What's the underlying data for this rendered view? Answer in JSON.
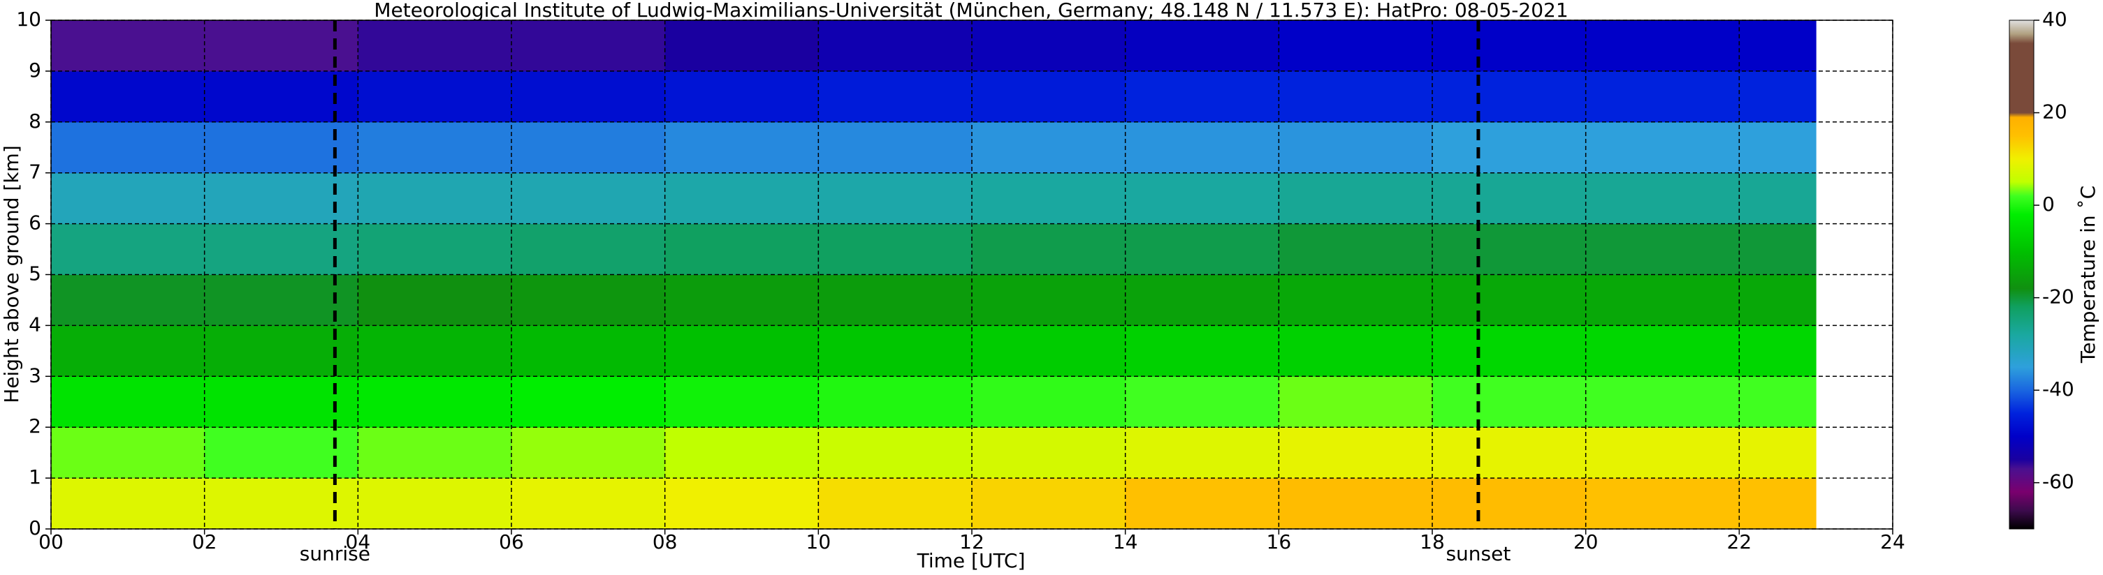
{
  "chart_data": {
    "type": "heatmap",
    "title": "Meteorological Institute of Ludwig-Maximilians-Universität (München, Germany; 48.148 N / 11.573 E):    HatPro: 08-05-2021",
    "xlabel": "Time [UTC]",
    "ylabel": "Height above ground [km]",
    "colorbar_label": "Temperature in ˚C",
    "x": [
      0,
      2,
      4,
      6,
      8,
      10,
      12,
      14,
      16,
      18,
      20,
      22,
      23
    ],
    "y": [
      0,
      1,
      2,
      3,
      4,
      5,
      6,
      7,
      8,
      9,
      10
    ],
    "z": [
      [
        8,
        8,
        8,
        9,
        10,
        12,
        13,
        15,
        16,
        16,
        15,
        15
      ],
      [
        3,
        2,
        3,
        4,
        5,
        6,
        7,
        8,
        9,
        9,
        9,
        9
      ],
      [
        -4,
        -4,
        -3,
        -2,
        -1,
        0,
        1,
        2,
        3,
        2,
        2,
        2
      ],
      [
        -13,
        -13,
        -12,
        -11,
        -10,
        -9,
        -8,
        -7,
        -7,
        -6,
        -6,
        -6
      ],
      [
        -19,
        -19,
        -18,
        -17,
        -16,
        -16,
        -15,
        -15,
        -14,
        -14,
        -14,
        -14
      ],
      [
        -25,
        -25,
        -24,
        -23,
        -22,
        -22,
        -21,
        -21,
        -20,
        -20,
        -20,
        -20
      ],
      [
        -31,
        -31,
        -30,
        -30,
        -29,
        -29,
        -28,
        -28,
        -27,
        -27,
        -27,
        -27
      ],
      [
        -39,
        -39,
        -38,
        -38,
        -37,
        -37,
        -36,
        -36,
        -36,
        -35,
        -35,
        -35
      ],
      [
        -49,
        -49,
        -48,
        -48,
        -47,
        -46,
        -46,
        -45,
        -45,
        -45,
        -45,
        -45
      ],
      [
        -57,
        -57,
        -56,
        -56,
        -55,
        -53,
        -52,
        -51,
        -50,
        -50,
        -50,
        -50
      ]
    ],
    "xlim": [
      0,
      24
    ],
    "ylim": [
      0,
      10
    ],
    "xticks": [
      {
        "value": 0,
        "label": "00"
      },
      {
        "value": 2,
        "label": "02"
      },
      {
        "value": 4,
        "label": "04"
      },
      {
        "value": 6,
        "label": "06"
      },
      {
        "value": 8,
        "label": "08"
      },
      10,
      12,
      14,
      16,
      18,
      20,
      22,
      24
    ],
    "yticks": [
      0,
      1,
      2,
      3,
      4,
      5,
      6,
      7,
      8,
      9,
      10
    ],
    "grid": true,
    "clim": [
      -70,
      40
    ],
    "cticks": [
      -60,
      -40,
      -20,
      0,
      20,
      40
    ],
    "colorscale": [
      [
        -70,
        "#000000"
      ],
      [
        -66,
        "#3d0a4d"
      ],
      [
        -62,
        "#7a006e"
      ],
      [
        -57,
        "#4a1090"
      ],
      [
        -55,
        "#1a00a0"
      ],
      [
        -50,
        "#0000c8"
      ],
      [
        -45,
        "#0022dd"
      ],
      [
        -40,
        "#1a66e0"
      ],
      [
        -35,
        "#2ea0dc"
      ],
      [
        -28,
        "#1aa8a0"
      ],
      [
        -22,
        "#10a060"
      ],
      [
        -18,
        "#109010"
      ],
      [
        -10,
        "#00c000"
      ],
      [
        -2,
        "#00ee00"
      ],
      [
        2,
        "#40ff20"
      ],
      [
        5,
        "#c0ff00"
      ],
      [
        10,
        "#f0f000"
      ],
      [
        15,
        "#ffc000"
      ],
      [
        19,
        "#ffb000"
      ],
      [
        20,
        "#7a4a3a"
      ],
      [
        35,
        "#7a4a3a"
      ],
      [
        37,
        "#b0a080"
      ],
      [
        40,
        "#e0e0e0"
      ]
    ],
    "annotations": [
      {
        "x": 3.7,
        "label": "sunrise"
      },
      {
        "x": 18.6,
        "label": "sunset"
      }
    ]
  }
}
